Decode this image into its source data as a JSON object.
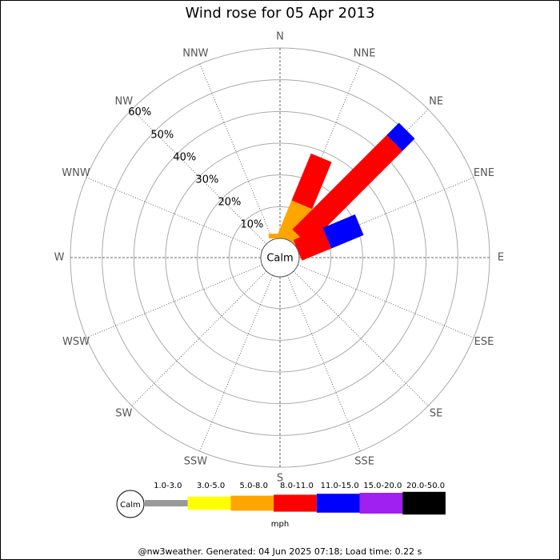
{
  "chart_data": {
    "type": "windrose",
    "title": "Wind rose for 05 Apr 2013",
    "categories": [
      "N",
      "NNE",
      "NE",
      "ENE",
      "E",
      "ESE",
      "SE",
      "SSE",
      "S",
      "SSW",
      "SW",
      "WSW",
      "W",
      "WNW",
      "NW",
      "NNW"
    ],
    "calm_label": "Calm",
    "rlim": [
      0,
      60
    ],
    "rticks": [
      {
        "value": 10,
        "label": "10%"
      },
      {
        "value": 20,
        "label": "20%"
      },
      {
        "value": 30,
        "label": "30%"
      },
      {
        "value": 40,
        "label": "40%"
      },
      {
        "value": 50,
        "label": "50%"
      },
      {
        "value": 60,
        "label": "60%"
      }
    ],
    "series": [
      {
        "name": "1.0-3.0",
        "color": "#999999",
        "values": [
          0,
          0,
          0,
          0,
          0,
          0,
          0,
          0,
          0,
          0,
          0,
          0,
          0,
          0,
          0,
          0
        ]
      },
      {
        "name": "3.0-5.0",
        "color": "#ffff00",
        "values": [
          0,
          0,
          0,
          0,
          0,
          0,
          0,
          0,
          0,
          0,
          0,
          0,
          0,
          0,
          0,
          0
        ]
      },
      {
        "name": "5.0-8.0",
        "color": "#ffa500",
        "values": [
          1.5,
          12,
          3,
          0,
          0,
          0,
          0,
          0,
          0,
          0,
          0,
          0,
          0,
          0,
          0,
          0
        ]
      },
      {
        "name": "8.0-11.0",
        "color": "#ff0000",
        "values": [
          0,
          16,
          42,
          10,
          0,
          0,
          0,
          0,
          0,
          0,
          0,
          0,
          0,
          0,
          0,
          0
        ]
      },
      {
        "name": "11.0-15.0",
        "color": "#0000ff",
        "values": [
          0,
          0,
          5.5,
          11,
          0,
          0,
          0,
          0,
          0,
          0,
          0,
          0,
          0,
          0,
          0,
          0
        ]
      },
      {
        "name": "15.0-20.0",
        "color": "#a020f0",
        "values": [
          0,
          0,
          0,
          0,
          0,
          0,
          0,
          0,
          0,
          0,
          0,
          0,
          0,
          0,
          0,
          0
        ]
      },
      {
        "name": "20.0-50.0",
        "color": "#000000",
        "values": [
          0,
          0,
          0,
          0,
          0,
          0,
          0,
          0,
          0,
          0,
          0,
          0,
          0,
          0,
          0,
          0
        ]
      }
    ],
    "legend_unit": "mph",
    "footer": "@nw3weather. Generated: 04 Jun 2025 07:18; Load time: 0.22 s"
  }
}
